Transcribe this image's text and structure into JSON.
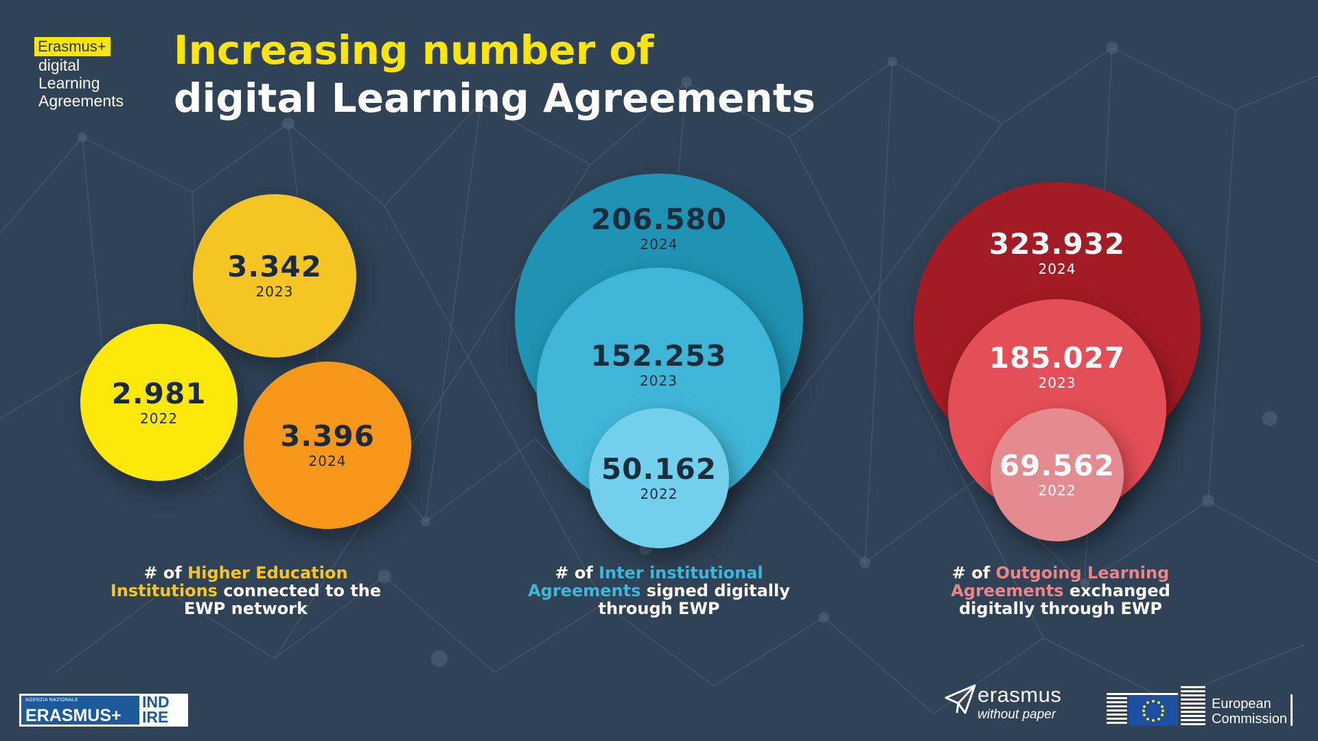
{
  "brand": {
    "badge": "Erasmus+",
    "line1": "digital",
    "line2": "Learning",
    "line3": "Agreements"
  },
  "title": {
    "line1": "Increasing number of",
    "line2": "digital Learning Agreements"
  },
  "colors": {
    "background": "#2f4256",
    "accent_yellow": "#ffe600",
    "hei_2022": "#fde80c",
    "hei_2023": "#f5c623",
    "hei_2024": "#f7971a",
    "iia_2024": "#1f93b3",
    "iia_2023": "#3fb6d8",
    "iia_2022": "#72d0ec",
    "ola_2024": "#a31b24",
    "ola_2023": "#e44e57",
    "ola_2022": "#e48b8f"
  },
  "chart_data": [
    {
      "type": "bubble",
      "caption": {
        "prefix": "# of ",
        "highlight": "Higher Education Institutions",
        "suffix": " connected to the EWP network"
      },
      "series": [
        {
          "year": "2022",
          "label": "2.981",
          "value": 2981
        },
        {
          "year": "2023",
          "label": "3.342",
          "value": 3342
        },
        {
          "year": "2024",
          "label": "3.396",
          "value": 3396
        }
      ]
    },
    {
      "type": "bubble",
      "caption": {
        "prefix": "# of ",
        "highlight": "Inter institutional Agreements",
        "suffix": " signed digitally through EWP"
      },
      "series": [
        {
          "year": "2024",
          "label": "206.580",
          "value": 206580
        },
        {
          "year": "2023",
          "label": "152.253",
          "value": 152253
        },
        {
          "year": "2022",
          "label": "50.162",
          "value": 50162
        }
      ]
    },
    {
      "type": "bubble",
      "caption": {
        "prefix": "# of ",
        "highlight": "Outgoing Learning Agreements",
        "suffix": " exchanged digitally through EWP"
      },
      "series": [
        {
          "year": "2024",
          "label": "323.932",
          "value": 323932
        },
        {
          "year": "2023",
          "label": "185.027",
          "value": 185027
        },
        {
          "year": "2022",
          "label": "69.562",
          "value": 69562
        }
      ]
    }
  ],
  "footer": {
    "indire_small": "AGENZIA NAZIONALE",
    "indire_big": "ERASMUS+",
    "indire_right_1": "IND",
    "indire_right_2": "IRE",
    "ewp_word": "erasmus",
    "ewp_sub": "without paper",
    "ec_line1": "European",
    "ec_line2": "Commission",
    "paper-plane-icon": "paper-plane-icon",
    "eu-flag-icon": "eu-flag-icon"
  }
}
